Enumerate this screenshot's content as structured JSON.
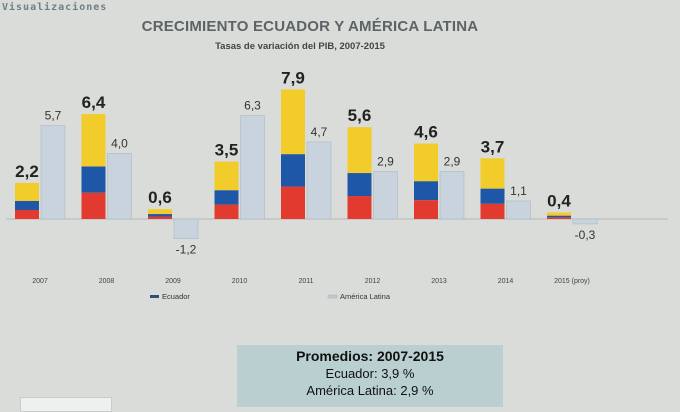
{
  "watermark": "Visualizaciones",
  "chart_data": {
    "type": "bar",
    "title": "CRECIMIENTO ECUADOR Y AMÉRICA LATINA",
    "subtitle": "Tasas de variación del PIB, 2007-2015",
    "categories": [
      "2007",
      "2008",
      "2009",
      "2010",
      "2011",
      "2012",
      "2013",
      "2014",
      "2015 (proy)"
    ],
    "series": [
      {
        "name": "Ecuador",
        "values": [
          2.2,
          6.4,
          0.6,
          3.5,
          7.9,
          5.6,
          4.6,
          3.7,
          0.4
        ],
        "labels": [
          "2,2",
          "6,4",
          "0,6",
          "3,5",
          "7,9",
          "5,6",
          "4,6",
          "3,7",
          "0,4"
        ]
      },
      {
        "name": "América Latina",
        "values": [
          5.7,
          4.0,
          -1.2,
          6.3,
          4.7,
          2.9,
          2.9,
          1.1,
          -0.3
        ],
        "labels": [
          "5,7",
          "4,0",
          "-1,2",
          "6,3",
          "4,7",
          "2,9",
          "2,9",
          "1,1",
          "-0,3"
        ]
      }
    ],
    "ylim": [
      -2,
      8
    ],
    "legend": "bottom",
    "colors": {
      "flag_yellow": "#f2cc2a",
      "flag_blue": "#1f57a8",
      "flag_red": "#e23a2f",
      "latam": "#c9d3dd"
    }
  },
  "summary": {
    "heading": "Promedios:  2007-2015",
    "ecuador": "Ecuador: 3,9 %",
    "latam": "América Latina: 2,9 %"
  }
}
